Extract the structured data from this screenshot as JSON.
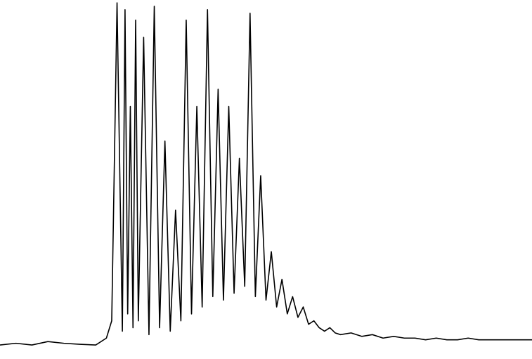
{
  "chart_data": {
    "type": "line",
    "x": [
      0,
      3,
      6,
      9,
      12,
      15,
      18,
      20,
      21,
      22,
      23,
      23.5,
      24,
      24.5,
      25,
      25.5,
      26,
      27,
      28,
      29,
      30,
      31,
      32,
      33,
      34,
      35,
      36,
      37,
      38,
      39,
      40,
      41,
      42,
      43,
      44,
      45,
      46,
      47,
      48,
      49,
      50,
      51,
      52,
      53,
      54,
      55,
      56,
      57,
      58,
      59,
      60,
      61,
      62,
      63,
      64,
      66,
      68,
      70,
      72,
      74,
      76,
      78,
      80,
      82,
      84,
      86,
      88,
      90,
      92,
      94,
      96,
      98,
      100
    ],
    "series": [
      {
        "color": "#000000",
        "values": [
          1,
          1.5,
          1,
          2,
          1.5,
          1.2,
          1,
          3,
          8,
          100,
          5,
          98,
          10,
          70,
          6,
          95,
          8,
          90,
          4,
          99,
          6,
          60,
          5,
          40,
          8,
          95,
          10,
          70,
          12,
          98,
          15,
          75,
          14,
          70,
          16,
          55,
          18,
          97,
          15,
          50,
          14,
          28,
          12,
          20,
          10,
          15,
          9,
          12,
          7,
          8,
          6,
          5,
          6,
          4.5,
          4,
          4.5,
          3.5,
          4,
          3,
          3.5,
          3,
          3,
          2.5,
          3,
          2.5,
          2.5,
          3,
          2.5,
          2.5,
          2.5,
          2.5,
          2.5,
          2.5
        ]
      }
    ],
    "xlim": [
      0,
      100
    ],
    "ylim": [
      0,
      100
    ]
  }
}
